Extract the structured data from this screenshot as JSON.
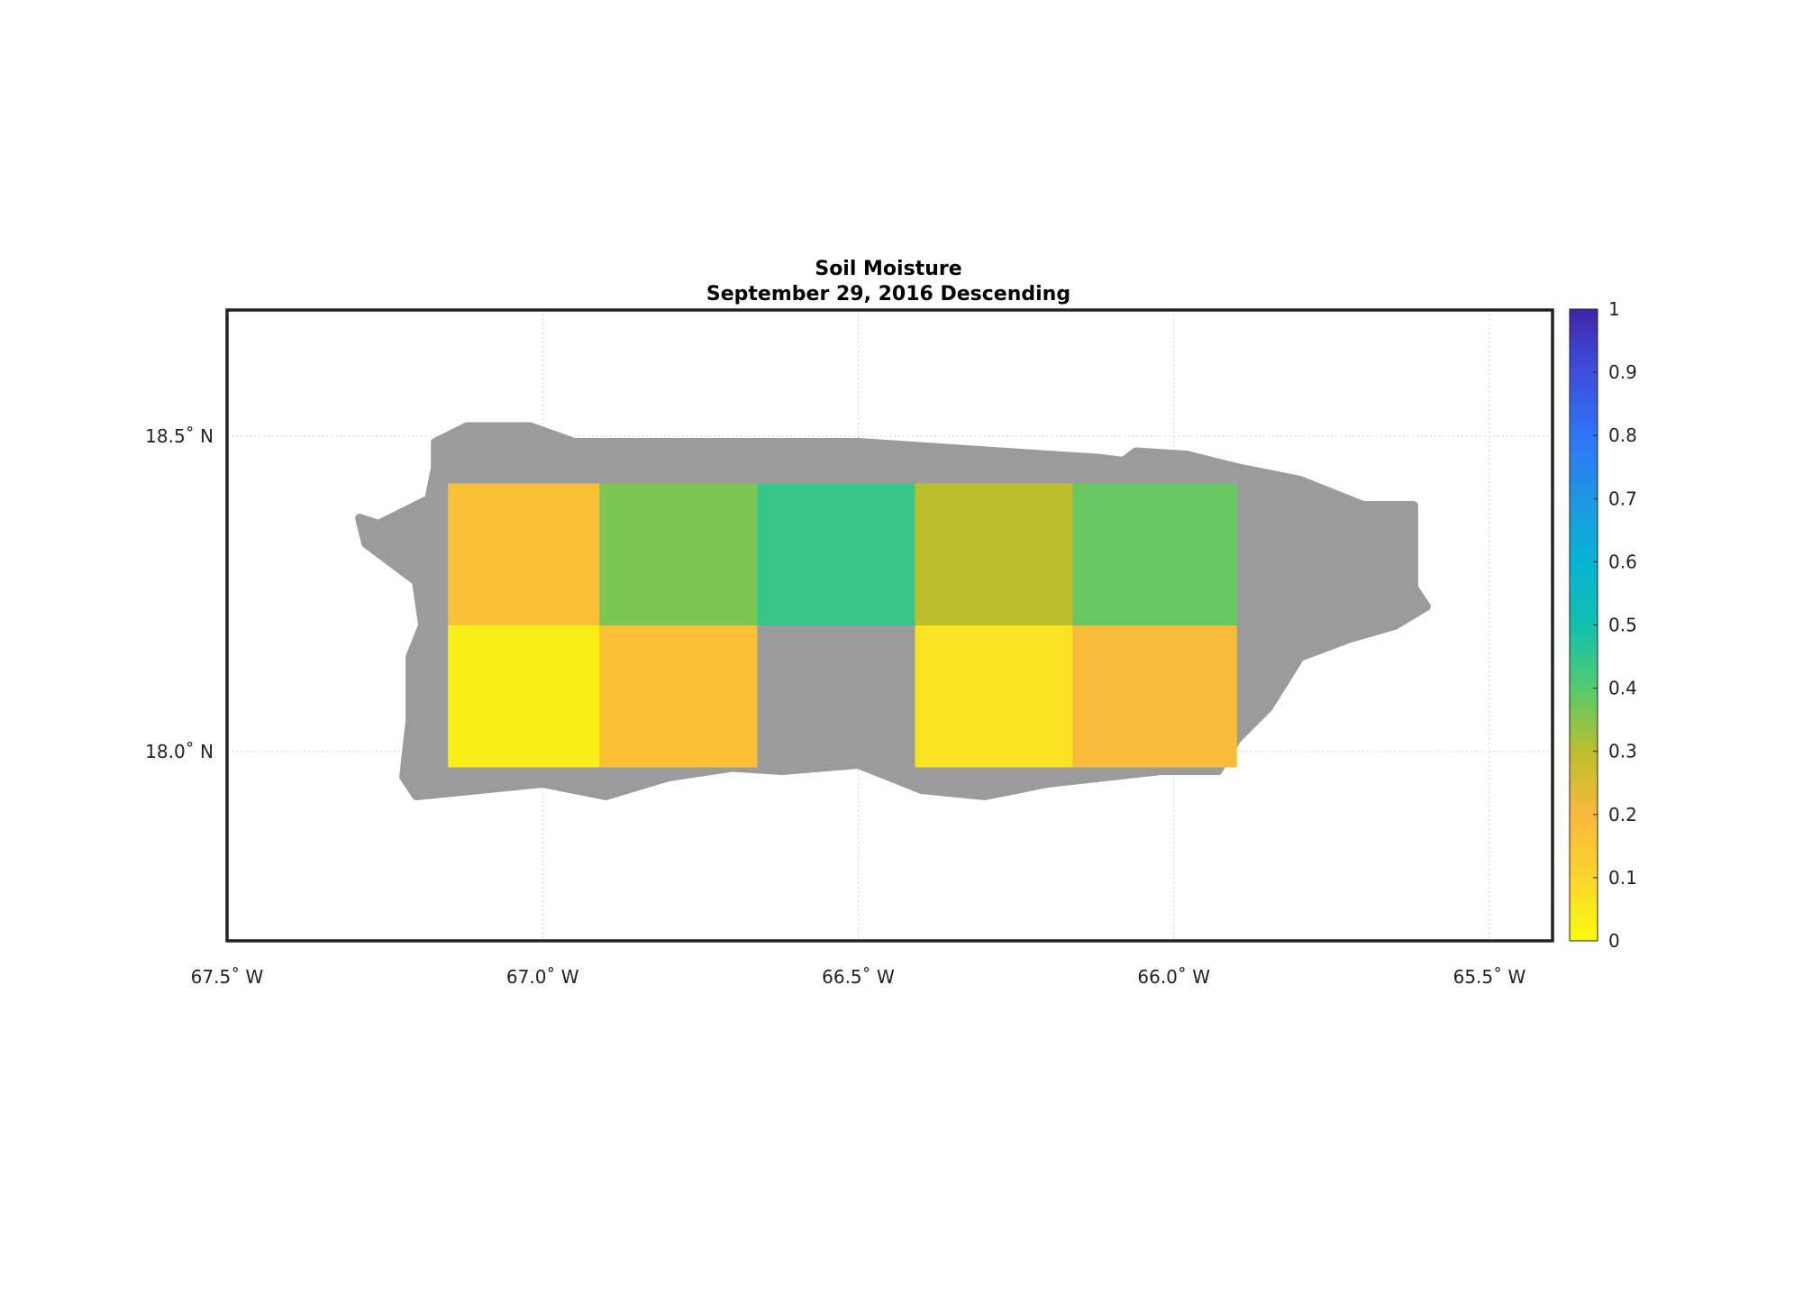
{
  "title": "Soil Moisture",
  "subtitle": "September 29, 2016 Descending",
  "map": {
    "lon_range": [
      -67.5,
      -65.4
    ],
    "lat_range": [
      17.7,
      18.7
    ],
    "land_color": "#9b9b9b",
    "frame_color": "#222222",
    "grid": true,
    "x_ticks": [
      {
        "value": -67.5,
        "label": "67.5˚ W"
      },
      {
        "value": -67.0,
        "label": "67.0˚ W"
      },
      {
        "value": -66.5,
        "label": "66.5˚ W"
      },
      {
        "value": -66.0,
        "label": "66.0˚ W"
      },
      {
        "value": -65.5,
        "label": "65.5˚ W"
      }
    ],
    "y_ticks": [
      {
        "value": 18.5,
        "label": "18.5˚ N"
      },
      {
        "value": 18.0,
        "label": "18.0˚ N"
      }
    ],
    "cells": [
      {
        "lon": [
          -67.15,
          -66.91
        ],
        "lat": [
          18.2,
          18.425
        ],
        "value": 0.17
      },
      {
        "lon": [
          -66.91,
          -66.66
        ],
        "lat": [
          18.2,
          18.425
        ],
        "value": 0.36
      },
      {
        "lon": [
          -66.66,
          -66.41
        ],
        "lat": [
          18.2,
          18.425
        ],
        "value": 0.44
      },
      {
        "lon": [
          -66.41,
          -66.16
        ],
        "lat": [
          18.2,
          18.425
        ],
        "value": 0.3
      },
      {
        "lon": [
          -66.16,
          -65.9
        ],
        "lat": [
          18.2,
          18.425
        ],
        "value": 0.38
      },
      {
        "lon": [
          -67.15,
          -66.91
        ],
        "lat": [
          17.975,
          18.2
        ],
        "value": 0.03
      },
      {
        "lon": [
          -66.91,
          -66.66
        ],
        "lat": [
          17.975,
          18.2
        ],
        "value": 0.17
      },
      {
        "lon": [
          -66.41,
          -66.16
        ],
        "lat": [
          17.975,
          18.2
        ],
        "value": 0.06
      },
      {
        "lon": [
          -66.16,
          -65.9
        ],
        "lat": [
          17.975,
          18.2
        ],
        "value": 0.19
      }
    ],
    "island_outline": [
      [
        -67.29,
        18.37
      ],
      [
        -67.26,
        18.36
      ],
      [
        -67.22,
        18.38
      ],
      [
        -67.18,
        18.4
      ],
      [
        -67.17,
        18.45
      ],
      [
        -67.17,
        18.49
      ],
      [
        -67.12,
        18.515
      ],
      [
        -67.02,
        18.515
      ],
      [
        -66.95,
        18.49
      ],
      [
        -66.85,
        18.49
      ],
      [
        -66.75,
        18.49
      ],
      [
        -66.62,
        18.49
      ],
      [
        -66.5,
        18.49
      ],
      [
        -66.35,
        18.48
      ],
      [
        -66.2,
        18.47
      ],
      [
        -66.12,
        18.465
      ],
      [
        -66.08,
        18.46
      ],
      [
        -66.06,
        18.475
      ],
      [
        -65.98,
        18.47
      ],
      [
        -65.9,
        18.45
      ],
      [
        -65.8,
        18.43
      ],
      [
        -65.7,
        18.39
      ],
      [
        -65.62,
        18.39
      ],
      [
        -65.62,
        18.26
      ],
      [
        -65.6,
        18.23
      ],
      [
        -65.65,
        18.2
      ],
      [
        -65.72,
        18.18
      ],
      [
        -65.8,
        18.15
      ],
      [
        -65.85,
        18.07
      ],
      [
        -65.9,
        18.02
      ],
      [
        -65.93,
        17.97
      ],
      [
        -66.02,
        17.97
      ],
      [
        -66.2,
        17.95
      ],
      [
        -66.3,
        17.93
      ],
      [
        -66.4,
        17.94
      ],
      [
        -66.5,
        17.98
      ],
      [
        -66.62,
        17.97
      ],
      [
        -66.7,
        17.975
      ],
      [
        -66.8,
        17.96
      ],
      [
        -66.9,
        17.93
      ],
      [
        -67.0,
        17.95
      ],
      [
        -67.1,
        17.94
      ],
      [
        -67.2,
        17.93
      ],
      [
        -67.22,
        17.96
      ],
      [
        -67.21,
        18.05
      ],
      [
        -67.21,
        18.15
      ],
      [
        -67.19,
        18.2
      ],
      [
        -67.2,
        18.27
      ],
      [
        -67.24,
        18.3
      ],
      [
        -67.28,
        18.33
      ]
    ]
  },
  "colorbar": {
    "range": [
      0,
      1
    ],
    "ticks": [
      "0",
      "0.1",
      "0.2",
      "0.3",
      "0.4",
      "0.5",
      "0.6",
      "0.7",
      "0.8",
      "0.9",
      "1"
    ],
    "stops": [
      {
        "value": 0.0,
        "color": "#f9fb0e"
      },
      {
        "value": 0.1,
        "color": "#fbd52d"
      },
      {
        "value": 0.2,
        "color": "#f9b93b"
      },
      {
        "value": 0.3,
        "color": "#bcbe2c"
      },
      {
        "value": 0.4,
        "color": "#52cb6e"
      },
      {
        "value": 0.5,
        "color": "#12bfb0"
      },
      {
        "value": 0.6,
        "color": "#07b3d4"
      },
      {
        "value": 0.7,
        "color": "#1e96e4"
      },
      {
        "value": 0.8,
        "color": "#2f74f7"
      },
      {
        "value": 0.9,
        "color": "#3e4fdc"
      },
      {
        "value": 1.0,
        "color": "#3e26a8"
      }
    ]
  }
}
